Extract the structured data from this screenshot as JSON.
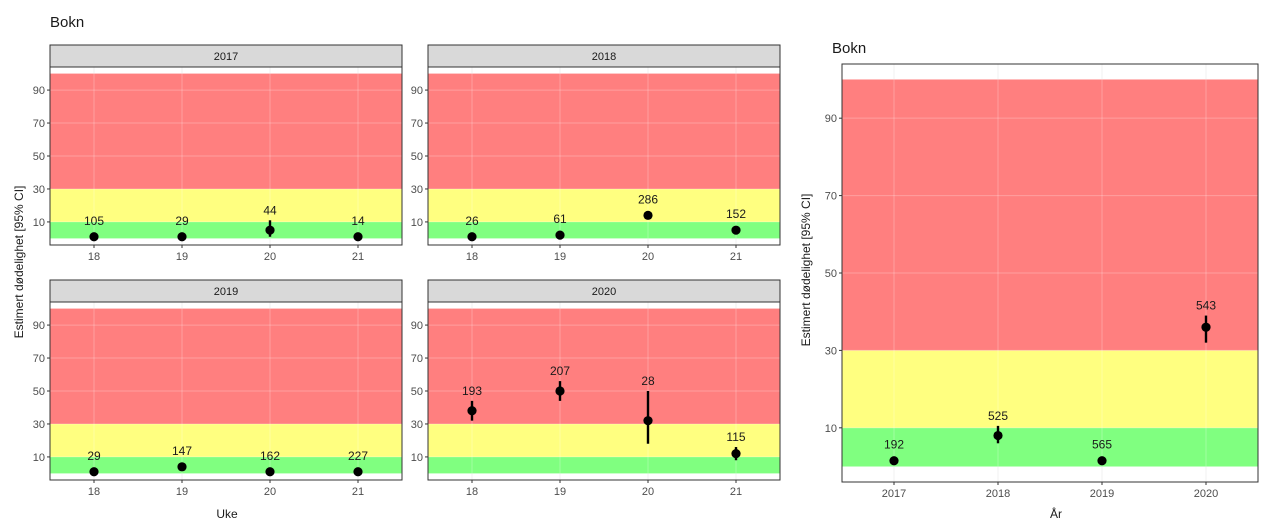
{
  "colors": {
    "red": "#ff7f7f",
    "yellow": "#ffff80",
    "green": "#80ff80",
    "point": "#000000",
    "strip_bg": "#d9d9d9",
    "grid": "#ebebeb"
  },
  "chart_data": [
    {
      "type": "scatter",
      "title": "Bokn",
      "xlabel": "Uke",
      "ylabel": "Estimert dødelighet [95% CI]",
      "x_ticks": [
        "18",
        "19",
        "20",
        "21"
      ],
      "y_ticks": [
        10,
        30,
        50,
        70,
        90
      ],
      "ylim": [
        -4,
        104
      ],
      "bands": [
        {
          "name": "green",
          "from": 0,
          "to": 10
        },
        {
          "name": "yellow",
          "from": 10,
          "to": 30
        },
        {
          "name": "red",
          "from": 30,
          "to": 100
        }
      ],
      "facets": [
        {
          "strip": "2017",
          "points": [
            {
              "x": "18",
              "y": 1,
              "lo": 0,
              "hi": 2,
              "label": "105"
            },
            {
              "x": "19",
              "y": 1,
              "lo": 0,
              "hi": 2,
              "label": "29"
            },
            {
              "x": "20",
              "y": 5,
              "lo": 1,
              "hi": 11,
              "label": "44"
            },
            {
              "x": "21",
              "y": 1,
              "lo": 0,
              "hi": 2,
              "label": "14"
            }
          ]
        },
        {
          "strip": "2018",
          "points": [
            {
              "x": "18",
              "y": 1,
              "lo": 0,
              "hi": 2,
              "label": "26"
            },
            {
              "x": "19",
              "y": 2,
              "lo": 1,
              "hi": 3,
              "label": "61"
            },
            {
              "x": "20",
              "y": 14,
              "lo": 12,
              "hi": 16,
              "label": "286"
            },
            {
              "x": "21",
              "y": 5,
              "lo": 3,
              "hi": 7,
              "label": "152"
            }
          ]
        },
        {
          "strip": "2019",
          "points": [
            {
              "x": "18",
              "y": 1,
              "lo": 0,
              "hi": 2,
              "label": "29"
            },
            {
              "x": "19",
              "y": 4,
              "lo": 2,
              "hi": 6,
              "label": "147"
            },
            {
              "x": "20",
              "y": 1,
              "lo": 0,
              "hi": 2,
              "label": "162"
            },
            {
              "x": "21",
              "y": 1,
              "lo": 0,
              "hi": 2,
              "label": "227"
            }
          ]
        },
        {
          "strip": "2020",
          "points": [
            {
              "x": "18",
              "y": 38,
              "lo": 32,
              "hi": 44,
              "label": "193"
            },
            {
              "x": "19",
              "y": 50,
              "lo": 44,
              "hi": 56,
              "label": "207"
            },
            {
              "x": "20",
              "y": 32,
              "lo": 18,
              "hi": 50,
              "label": "28"
            },
            {
              "x": "21",
              "y": 12,
              "lo": 8,
              "hi": 16,
              "label": "115"
            }
          ]
        }
      ]
    },
    {
      "type": "scatter",
      "title": "Bokn",
      "xlabel": "År",
      "ylabel": "Estimert dødelighet [95% CI]",
      "x_ticks": [
        "2017",
        "2018",
        "2019",
        "2020"
      ],
      "y_ticks": [
        10,
        30,
        50,
        70,
        90
      ],
      "ylim": [
        -4,
        104
      ],
      "bands": [
        {
          "name": "green",
          "from": 0,
          "to": 10
        },
        {
          "name": "yellow",
          "from": 10,
          "to": 30
        },
        {
          "name": "red",
          "from": 30,
          "to": 100
        }
      ],
      "points": [
        {
          "x": "2017",
          "y": 1.5,
          "lo": 0.5,
          "hi": 2.5,
          "label": "192"
        },
        {
          "x": "2018",
          "y": 8,
          "lo": 6,
          "hi": 10.5,
          "label": "525"
        },
        {
          "x": "2019",
          "y": 1.5,
          "lo": 0.5,
          "hi": 2.5,
          "label": "565"
        },
        {
          "x": "2020",
          "y": 36,
          "lo": 32,
          "hi": 39,
          "label": "543"
        }
      ]
    }
  ]
}
